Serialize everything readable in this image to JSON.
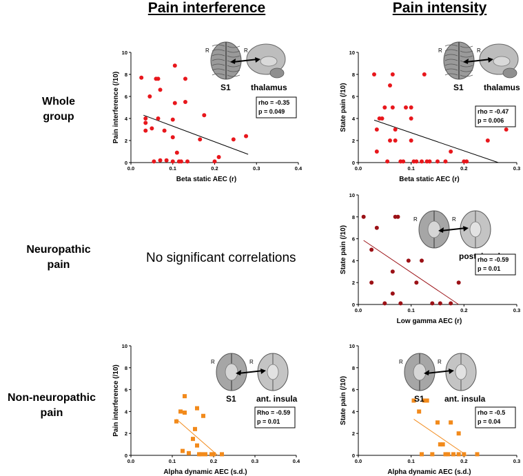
{
  "column_titles": [
    "Pain interference",
    "Pain intensity"
  ],
  "row_labels": [
    "Whole\ngroup",
    "Neuropathic\npain",
    "Non-neuropathic\npain"
  ],
  "no_sig_text": "No significant correlations",
  "colors": {
    "whole": "#e8171c",
    "neuro": "#9b1116",
    "nonneuro": "#f28a1b",
    "fit": "#000000"
  },
  "chart_data": [
    {
      "id": "whole-interference",
      "type": "scatter",
      "xlabel": "Beta static AEC (r)",
      "ylabel": "Pain interference (/10)",
      "xlim": [
        0,
        0.4
      ],
      "ylim": [
        0,
        10
      ],
      "xticks": [
        "0.0",
        "0.1",
        "0.2",
        "0.3",
        "0.4"
      ],
      "yticks": [
        "0",
        "2",
        "4",
        "6",
        "8",
        "10"
      ],
      "color": "#e8171c",
      "fit_color": "#000000",
      "marker": "circle",
      "fit": [
        [
          0.03,
          4.3
        ],
        [
          0.28,
          0.75
        ]
      ],
      "points": [
        [
          0.025,
          7.7
        ],
        [
          0.035,
          4.0
        ],
        [
          0.035,
          3.6
        ],
        [
          0.035,
          2.9
        ],
        [
          0.045,
          6.0
        ],
        [
          0.05,
          3.1
        ],
        [
          0.055,
          0.1
        ],
        [
          0.06,
          7.6
        ],
        [
          0.065,
          7.6
        ],
        [
          0.065,
          4.0
        ],
        [
          0.07,
          6.6
        ],
        [
          0.07,
          0.2
        ],
        [
          0.08,
          2.9
        ],
        [
          0.085,
          0.2
        ],
        [
          0.1,
          3.9
        ],
        [
          0.1,
          2.3
        ],
        [
          0.1,
          0.1
        ],
        [
          0.105,
          8.8
        ],
        [
          0.105,
          5.4
        ],
        [
          0.11,
          0.9
        ],
        [
          0.115,
          0.1
        ],
        [
          0.12,
          0.1
        ],
        [
          0.13,
          7.6
        ],
        [
          0.13,
          5.5
        ],
        [
          0.135,
          0.1
        ],
        [
          0.165,
          2.1
        ],
        [
          0.175,
          4.3
        ],
        [
          0.2,
          0.1
        ],
        [
          0.21,
          0.5
        ],
        [
          0.245,
          2.1
        ],
        [
          0.275,
          2.4
        ]
      ],
      "brain": {
        "left": "S1",
        "right": "thalamus",
        "style": "sagittal"
      },
      "stats": [
        "rho = -0.35",
        "p = 0.049"
      ]
    },
    {
      "id": "whole-intensity",
      "type": "scatter",
      "xlabel": "Beta static AEC (r)",
      "ylabel": "State pain (/10)",
      "xlim": [
        0,
        0.3
      ],
      "ylim": [
        0,
        10
      ],
      "xticks": [
        "0.0",
        "0.1",
        "0.2",
        "0.3"
      ],
      "yticks": [
        "0",
        "2",
        "4",
        "6",
        "8",
        "10"
      ],
      "color": "#e8171c",
      "fit_color": "#000000",
      "marker": "circle",
      "fit": [
        [
          0.03,
          3.85
        ],
        [
          0.265,
          0.0
        ]
      ],
      "points": [
        [
          0.03,
          8.0
        ],
        [
          0.035,
          1.0
        ],
        [
          0.035,
          3.0
        ],
        [
          0.04,
          4.0
        ],
        [
          0.045,
          4.0
        ],
        [
          0.05,
          5.0
        ],
        [
          0.055,
          0.1
        ],
        [
          0.06,
          7.0
        ],
        [
          0.06,
          2.0
        ],
        [
          0.065,
          8.0
        ],
        [
          0.065,
          5.0
        ],
        [
          0.07,
          2.0
        ],
        [
          0.07,
          3.0
        ],
        [
          0.08,
          0.1
        ],
        [
          0.085,
          0.1
        ],
        [
          0.09,
          5.0
        ],
        [
          0.1,
          4.0
        ],
        [
          0.1,
          2.0
        ],
        [
          0.1,
          5.0
        ],
        [
          0.105,
          0.1
        ],
        [
          0.11,
          0.1
        ],
        [
          0.12,
          0.1
        ],
        [
          0.125,
          8.0
        ],
        [
          0.13,
          0.1
        ],
        [
          0.135,
          0.1
        ],
        [
          0.15,
          0.1
        ],
        [
          0.165,
          0.1
        ],
        [
          0.175,
          1.0
        ],
        [
          0.2,
          0.1
        ],
        [
          0.205,
          0.1
        ],
        [
          0.245,
          2.0
        ],
        [
          0.28,
          3.0
        ]
      ],
      "brain": {
        "left": "S1",
        "right": "thalamus",
        "style": "sagittal"
      },
      "stats": [
        "rho = -0.47",
        "p = 0.006"
      ]
    },
    {
      "id": "neuro-intensity",
      "type": "scatter",
      "xlabel": "Low gamma AEC (r)",
      "ylabel": "State pain (/10)",
      "xlim": [
        0,
        0.3
      ],
      "ylim": [
        0,
        10
      ],
      "xticks": [
        "0.0",
        "0.1",
        "0.2",
        "0.3"
      ],
      "yticks": [
        "0",
        "2",
        "4",
        "6",
        "8",
        "10"
      ],
      "color": "#9b1116",
      "fit_color": "#9b1116",
      "marker": "circle",
      "fit": [
        [
          0.01,
          5.85
        ],
        [
          0.19,
          0.0
        ]
      ],
      "points": [
        [
          0.01,
          8.0
        ],
        [
          0.025,
          5.0
        ],
        [
          0.025,
          2.0
        ],
        [
          0.035,
          7.0
        ],
        [
          0.05,
          0.1
        ],
        [
          0.07,
          8.0
        ],
        [
          0.075,
          8.0
        ],
        [
          0.065,
          3.0
        ],
        [
          0.065,
          1.0
        ],
        [
          0.08,
          0.1
        ],
        [
          0.095,
          4.0
        ],
        [
          0.11,
          2.0
        ],
        [
          0.12,
          4.0
        ],
        [
          0.14,
          0.1
        ],
        [
          0.155,
          0.1
        ],
        [
          0.175,
          0.1
        ],
        [
          0.19,
          2.0
        ]
      ],
      "brain": {
        "left": "",
        "right": "post. insula",
        "style": "axial"
      },
      "stats": [
        "rho = -0.59",
        "p = 0.01"
      ]
    },
    {
      "id": "nonneuro-interference",
      "type": "scatter",
      "xlabel": "Alpha dynamic AEC (s.d.)",
      "ylabel": "Pain interference (/10)",
      "xlim": [
        0,
        0.4
      ],
      "ylim": [
        0,
        10
      ],
      "xticks": [
        "0.0",
        "0.1",
        "0.2",
        "0.3",
        "0.4"
      ],
      "yticks": [
        "0",
        "2",
        "4",
        "6",
        "8",
        "10"
      ],
      "color": "#f28a1b",
      "fit_color": "#f28a1b",
      "marker": "square",
      "fit": [
        [
          0.11,
          3.3
        ],
        [
          0.21,
          0.0
        ]
      ],
      "points": [
        [
          0.11,
          3.1
        ],
        [
          0.12,
          4.0
        ],
        [
          0.125,
          0.4
        ],
        [
          0.13,
          3.9
        ],
        [
          0.13,
          5.4
        ],
        [
          0.14,
          0.2
        ],
        [
          0.15,
          1.5
        ],
        [
          0.155,
          2.4
        ],
        [
          0.16,
          0.9
        ],
        [
          0.16,
          4.3
        ],
        [
          0.165,
          0.1
        ],
        [
          0.17,
          0.1
        ],
        [
          0.175,
          3.6
        ],
        [
          0.18,
          0.1
        ],
        [
          0.195,
          0.1
        ],
        [
          0.2,
          0.1
        ],
        [
          0.22,
          0.1
        ]
      ],
      "brain": {
        "left": "S1",
        "right": "ant. insula",
        "style": "axial"
      },
      "stats": [
        "Rho = -0.59",
        "p = 0.01"
      ]
    },
    {
      "id": "nonneuro-intensity",
      "type": "scatter",
      "xlabel": "Alpha dynamic AEC (s.d.)",
      "ylabel": "State pain (/10)",
      "xlim": [
        0,
        0.3
      ],
      "ylim": [
        0,
        10
      ],
      "xticks": [
        "0.0",
        "0.1",
        "0.2",
        "0.3"
      ],
      "yticks": [
        "0",
        "2",
        "4",
        "6",
        "8",
        "10"
      ],
      "color": "#f28a1b",
      "fit_color": "#f28a1b",
      "marker": "square",
      "fit": [
        [
          0.105,
          3.3
        ],
        [
          0.205,
          0.0
        ]
      ],
      "points": [
        [
          0.105,
          5.0
        ],
        [
          0.115,
          4.0
        ],
        [
          0.12,
          0.1
        ],
        [
          0.125,
          5.0
        ],
        [
          0.13,
          5.0
        ],
        [
          0.14,
          0.1
        ],
        [
          0.15,
          3.0
        ],
        [
          0.155,
          1.0
        ],
        [
          0.16,
          1.0
        ],
        [
          0.165,
          0.1
        ],
        [
          0.17,
          0.1
        ],
        [
          0.175,
          3.0
        ],
        [
          0.18,
          0.1
        ],
        [
          0.19,
          2.0
        ],
        [
          0.19,
          0.1
        ],
        [
          0.2,
          0.1
        ],
        [
          0.225,
          0.1
        ]
      ],
      "brain": {
        "left": "S1",
        "right": "ant. insula",
        "style": "axial"
      },
      "stats": [
        "rho = -0.5",
        "p = 0.04"
      ]
    }
  ]
}
